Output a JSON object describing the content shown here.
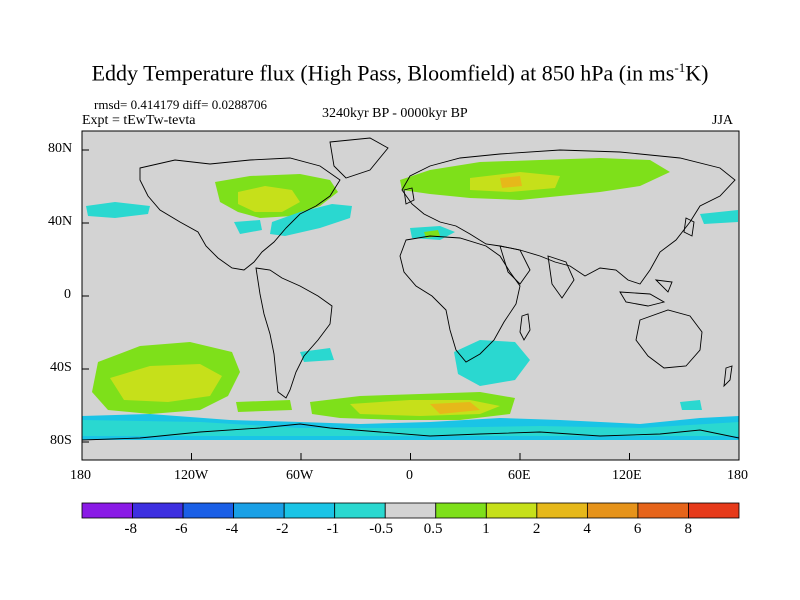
{
  "title_main": "Eddy Temperature flux (High Pass, Bloomfield) at 850 hPa (in ms",
  "title_sup": "-1",
  "title_end": "K)",
  "stats": "rmsd= 0.414179 diff= 0.0288706",
  "expt": "Expt = tEwTw-tevta",
  "period": "3240kyr BP - 0000kyr BP",
  "season": "JJA",
  "x_ticks": [
    "180",
    "120W",
    "60W",
    "0",
    "60E",
    "120E",
    "180"
  ],
  "y_ticks": [
    "80N",
    "40N",
    "0",
    "40S",
    "80S"
  ],
  "colorbar": {
    "labels": [
      "-8",
      "-6",
      "-4",
      "-2",
      "-1",
      "-0.5",
      "0.5",
      "1",
      "2",
      "4",
      "6",
      "8"
    ],
    "colors": [
      "#8a1ae6",
      "#3d2fe0",
      "#1a5fe6",
      "#1aa0e6",
      "#1ac4e6",
      "#2ad8d0",
      "#d3d3d3",
      "#7ee01a",
      "#c6e01a",
      "#e6b81a",
      "#e6931a",
      "#e6641a",
      "#e63a1a"
    ]
  },
  "map_colors": {
    "background": "#d3d3d3",
    "cyan": "#2ad8d0",
    "sky": "#1ac4e6",
    "green": "#7ee01a",
    "yellow_green": "#c6e01a",
    "orange": "#e6b81a",
    "coast": "#000000"
  }
}
